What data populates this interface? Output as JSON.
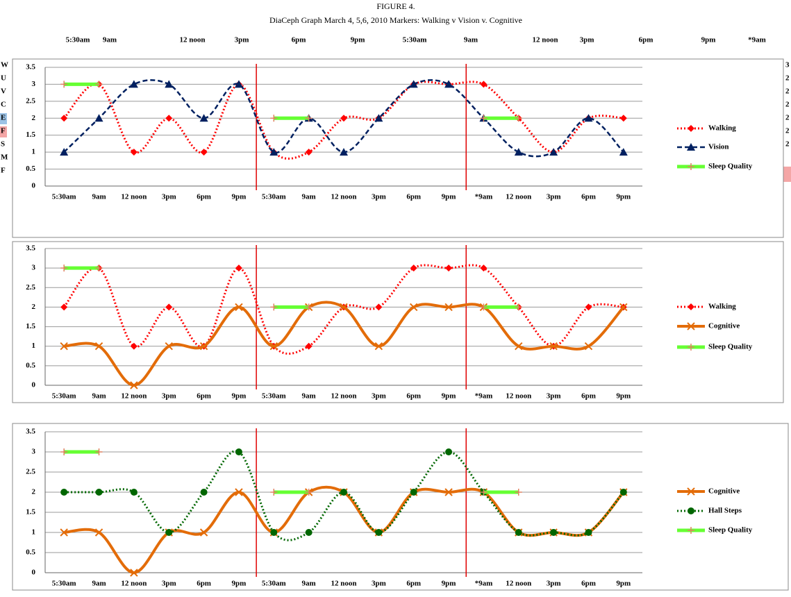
{
  "figure": {
    "title": "FIGURE 4.",
    "subtitle": "DiaCeph Graph March 4, 5,6, 2010 Markers: Walking v Vision v. Cognitive",
    "header_labels": [
      "5:30am",
      "9am",
      "12 noon",
      "3pm",
      "6pm",
      "9pm",
      "5:30am",
      "9am",
      "12 noon",
      "3pm",
      "6pm",
      "9pm",
      "*9am"
    ],
    "left_fragments": [
      "W",
      "U",
      "V",
      "C",
      "E",
      "F",
      "S",
      "M",
      "F"
    ],
    "right_fragments": [
      "3",
      "2",
      "2",
      "2",
      "2",
      "2",
      "2"
    ]
  },
  "chart_data": [
    {
      "type": "line",
      "categories": [
        "5:30am",
        "9am",
        "12 noon",
        "3pm",
        "6pm",
        "9pm",
        "5:30am",
        "9am",
        "12 noon",
        "3pm",
        "6pm",
        "9pm",
        "*9am",
        "12 noon",
        "3pm",
        "6pm",
        "9pm"
      ],
      "ylim": [
        0,
        3.5
      ],
      "yticks": [
        0,
        0.5,
        1,
        1.5,
        2,
        2.5,
        3,
        3.5
      ],
      "grid": true,
      "series": [
        {
          "name": "Walking",
          "color": "#ff0000",
          "marker": "diamond",
          "style": "dotted",
          "values": [
            2,
            3,
            1,
            2,
            1,
            3,
            1,
            1,
            2,
            2,
            3,
            3,
            3,
            2,
            1,
            2,
            2
          ]
        },
        {
          "name": "Vision",
          "color": "#002060",
          "marker": "triangle",
          "style": "dashed",
          "values": [
            1,
            2,
            3,
            3,
            2,
            3,
            1,
            2,
            1,
            2,
            3,
            3,
            2,
            1,
            1,
            2,
            1
          ]
        },
        {
          "name": "Sleep Quality",
          "color": "#66ff33",
          "marker": "plus",
          "style": "solid",
          "values": [
            3,
            3,
            null,
            null,
            null,
            null,
            2,
            2,
            null,
            null,
            null,
            null,
            2,
            2,
            null,
            null,
            null
          ]
        }
      ]
    },
    {
      "type": "line",
      "categories": [
        "5:30am",
        "9am",
        "12 noon",
        "3pm",
        "6pm",
        "9pm",
        "5:30am",
        "9am",
        "12 noon",
        "3pm",
        "6pm",
        "9pm",
        "*9am",
        "12 noon",
        "3pm",
        "6pm",
        "9pm"
      ],
      "ylim": [
        0,
        3.5
      ],
      "yticks": [
        0,
        0.5,
        1,
        1.5,
        2,
        2.5,
        3,
        3.5
      ],
      "grid": true,
      "series": [
        {
          "name": "Walking",
          "color": "#ff0000",
          "marker": "diamond",
          "style": "dotted",
          "values": [
            2,
            3,
            1,
            2,
            1,
            3,
            1,
            1,
            2,
            2,
            3,
            3,
            3,
            2,
            1,
            2,
            2
          ]
        },
        {
          "name": "Cognitive",
          "color": "#e36c09",
          "marker": "cross",
          "style": "thick",
          "values": [
            1,
            1,
            0,
            1,
            1,
            2,
            1,
            2,
            2,
            1,
            2,
            2,
            2,
            1,
            1,
            1,
            2
          ]
        },
        {
          "name": "Sleep Quality",
          "color": "#66ff33",
          "marker": "plus",
          "style": "solid",
          "values": [
            3,
            3,
            null,
            null,
            null,
            null,
            2,
            2,
            null,
            null,
            null,
            null,
            2,
            2,
            null,
            null,
            null
          ]
        }
      ]
    },
    {
      "type": "line",
      "categories": [
        "5:30am",
        "9am",
        "12 noon",
        "3pm",
        "6pm",
        "9pm",
        "5:30am",
        "9am",
        "12 noon",
        "3pm",
        "6pm",
        "9pm",
        "*9am",
        "12 noon",
        "3pm",
        "6pm",
        "9pm"
      ],
      "ylim": [
        0,
        3.5
      ],
      "yticks": [
        0,
        0.5,
        1,
        1.5,
        2,
        2.5,
        3,
        3.5
      ],
      "grid": true,
      "series": [
        {
          "name": "Cognitive",
          "color": "#e36c09",
          "marker": "cross",
          "style": "thick",
          "values": [
            1,
            1,
            0,
            1,
            1,
            2,
            1,
            2,
            2,
            1,
            2,
            2,
            2,
            1,
            1,
            1,
            2
          ]
        },
        {
          "name": "Hall Steps",
          "color": "#006600",
          "marker": "circle",
          "style": "dotted",
          "values": [
            2,
            2,
            2,
            1,
            2,
            3,
            1,
            1,
            2,
            1,
            2,
            3,
            2,
            1,
            1,
            1,
            2
          ]
        },
        {
          "name": "Sleep Quality",
          "color": "#66ff33",
          "marker": "plus",
          "style": "solid",
          "values": [
            3,
            3,
            null,
            null,
            null,
            null,
            2,
            2,
            null,
            null,
            null,
            null,
            2,
            2,
            null,
            null,
            null
          ]
        }
      ]
    }
  ]
}
